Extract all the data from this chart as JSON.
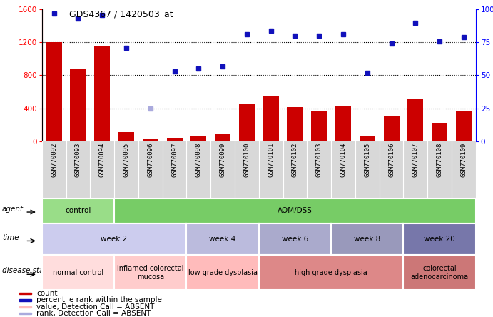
{
  "title": "GDS4367 / 1420503_at",
  "samples": [
    "GSM770092",
    "GSM770093",
    "GSM770094",
    "GSM770095",
    "GSM770096",
    "GSM770097",
    "GSM770098",
    "GSM770099",
    "GSM770100",
    "GSM770101",
    "GSM770102",
    "GSM770103",
    "GSM770104",
    "GSM770105",
    "GSM770106",
    "GSM770107",
    "GSM770108",
    "GSM770109"
  ],
  "bar_values": [
    1200,
    880,
    1150,
    110,
    30,
    40,
    60,
    80,
    460,
    540,
    410,
    370,
    430,
    60,
    310,
    510,
    220,
    360
  ],
  "dot_values": [
    97,
    93,
    96,
    71,
    25,
    53,
    55,
    57,
    81,
    84,
    80,
    80,
    81,
    52,
    74,
    90,
    76,
    79
  ],
  "dot_absent": [
    false,
    false,
    false,
    false,
    true,
    false,
    false,
    false,
    false,
    false,
    false,
    false,
    false,
    false,
    false,
    false,
    false,
    false
  ],
  "bar_color": "#cc0000",
  "dot_color": "#1111bb",
  "dot_absent_color": "#aaaadd",
  "ylim_left": [
    0,
    1600
  ],
  "ylim_right": [
    0,
    100
  ],
  "yticks_left": [
    0,
    400,
    800,
    1200,
    1600
  ],
  "yticks_right": [
    0,
    25,
    50,
    75,
    100
  ],
  "agent_segments": [
    {
      "text": "control",
      "start": 0,
      "end": 3,
      "color": "#99dd88"
    },
    {
      "text": "AOM/DSS",
      "start": 3,
      "end": 18,
      "color": "#77cc66"
    }
  ],
  "time_segments": [
    {
      "text": "week 2",
      "start": 0,
      "end": 6,
      "color": "#ccccee"
    },
    {
      "text": "week 4",
      "start": 6,
      "end": 9,
      "color": "#bbbbdd"
    },
    {
      "text": "week 6",
      "start": 9,
      "end": 12,
      "color": "#aaaacc"
    },
    {
      "text": "week 8",
      "start": 12,
      "end": 15,
      "color": "#9999bb"
    },
    {
      "text": "week 20",
      "start": 15,
      "end": 18,
      "color": "#7777aa"
    }
  ],
  "disease_segments": [
    {
      "text": "normal control",
      "start": 0,
      "end": 3,
      "color": "#ffdddd"
    },
    {
      "text": "inflamed colorectal\nmucosa",
      "start": 3,
      "end": 6,
      "color": "#ffcccc"
    },
    {
      "text": "low grade dysplasia",
      "start": 6,
      "end": 9,
      "color": "#ffbbbb"
    },
    {
      "text": "high grade dysplasia",
      "start": 9,
      "end": 15,
      "color": "#dd8888"
    },
    {
      "text": "colorectal\nadenocarcinoma",
      "start": 15,
      "end": 18,
      "color": "#cc7777"
    }
  ],
  "legend_items": [
    {
      "color": "#cc0000",
      "label": "count"
    },
    {
      "color": "#1111bb",
      "label": "percentile rank within the sample"
    },
    {
      "color": "#ffbbbb",
      "label": "value, Detection Call = ABSENT"
    },
    {
      "color": "#aaaadd",
      "label": "rank, Detection Call = ABSENT"
    }
  ]
}
